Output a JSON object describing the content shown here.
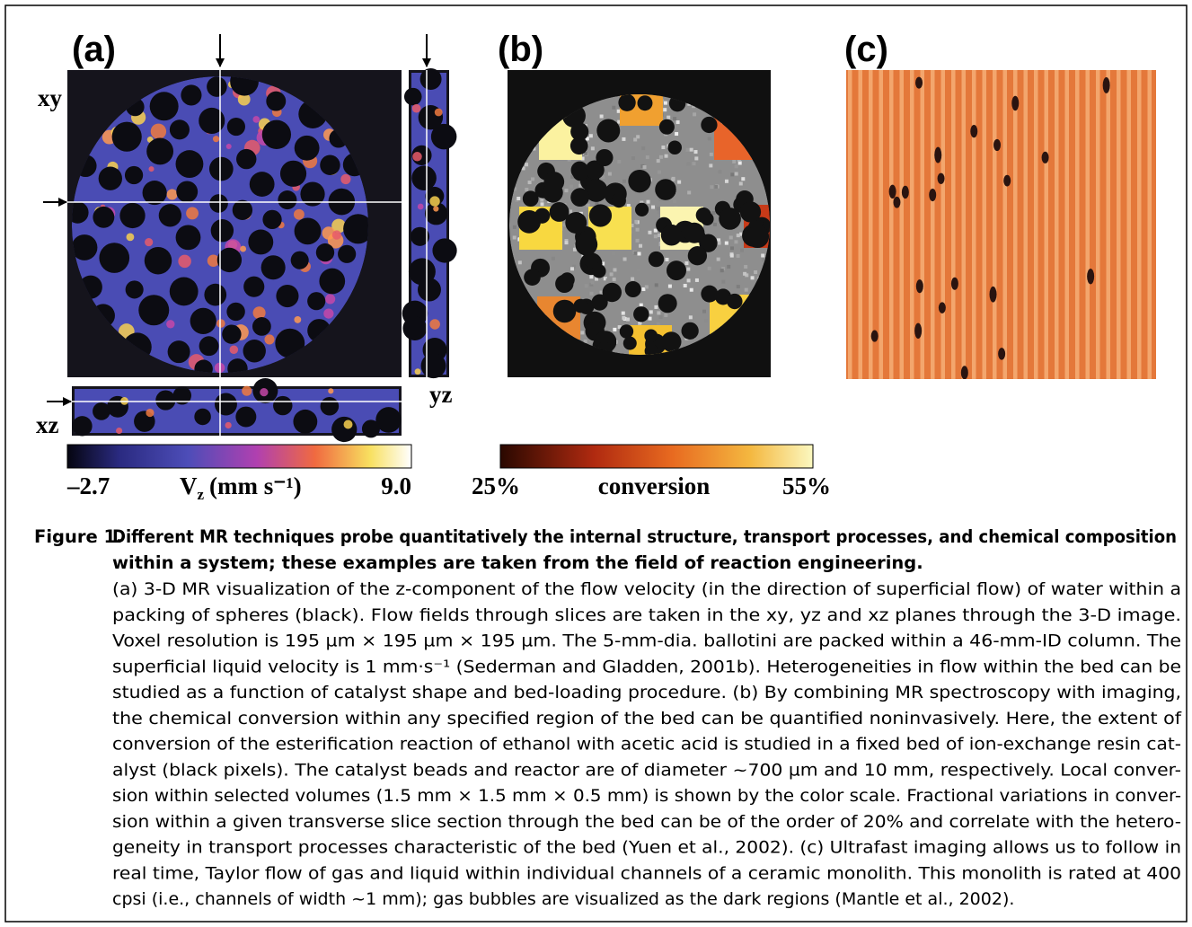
{
  "panels": [
    {
      "label": "(a)",
      "plane_labels": [
        "xy",
        "yz",
        "xz"
      ],
      "colorbar": {
        "min": "–2.7",
        "max": "9.0",
        "quantity": "V",
        "subscript": "z",
        "unit": "(mm s⁻¹)"
      }
    },
    {
      "label": "(b)",
      "colorbar": {
        "min": "25%",
        "max": "55%",
        "label": "conversion"
      }
    },
    {
      "label": "(c)"
    }
  ],
  "caption": {
    "number": "Figure 1.",
    "title_lines": [
      "Different MR techniques probe quantitatively the internal structure, transport processes, and chemical composition",
      "within a system; these examples are taken from the field of reaction engineering."
    ],
    "body_lines": [
      "(a) 3-D MR visualization of the z-component of the flow velocity (in the direction of superficial flow) of water within a",
      "packing of spheres (black). Flow fields through slices are taken in the xy, yz and xz planes through the 3-D image.",
      "Voxel resolution is 195 µm × 195 µm × 195 µm. The 5-mm-dia. ballotini are packed within a 46-mm-ID column. The",
      "superficial liquid velocity is 1 mm·s⁻¹ (Sederman and Gladden, 2001b). Heterogeneities in flow within the bed can be",
      "studied as a function of catalyst shape and bed-loading procedure. (b) By combining MR spectroscopy with imaging,",
      "the chemical conversion within any specified region of the bed can be quantified noninvasively. Here, the extent of",
      "conversion of the esterification reaction of ethanol with acetic acid is studied in a fixed bed of ion-exchange resin cat-",
      "alyst (black pixels). The catalyst beads and reactor are of diameter ~700 µm and 10 mm, respectively. Local conver-",
      "sion within selected volumes (1.5 mm × 1.5 mm × 0.5 mm) is shown by the color scale. Fractional variations in conver-",
      "sion within a given transverse slice section through the bed can be of the order of 20% and correlate with the hetero-",
      "geneity in transport processes characteristic of the bed (Yuen et al., 2002). (c) Ultrafast imaging allows us to follow in",
      "real time, Taylor flow of gas and liquid within individual channels of a ceramic monolith. This monolith is rated at 400",
      "cpsi (i.e., channels of width ~1 mm); gas bubbles are visualized as the dark regions (Mantle et al., 2002)."
    ]
  }
}
